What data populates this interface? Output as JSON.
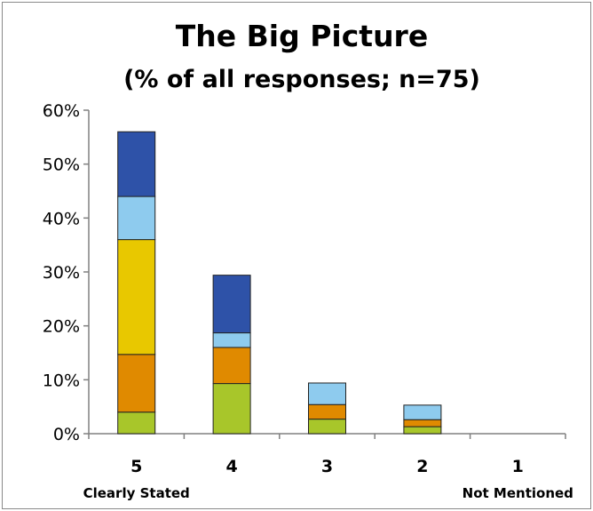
{
  "chart_data": {
    "type": "bar",
    "stacked": true,
    "title": "The Big Picture",
    "subtitle": "(% of all responses; n=75)",
    "categories": [
      "5",
      "4",
      "3",
      "2",
      "1"
    ],
    "category_notes": [
      "Clearly Stated",
      "",
      "",
      "",
      "Not Mentioned"
    ],
    "ylim": [
      0,
      60
    ],
    "yticks": [
      0,
      10,
      20,
      30,
      40,
      50,
      60
    ],
    "ytick_suffix": "%",
    "grid": false,
    "legend": "none",
    "series": [
      {
        "color": "#a8c62a",
        "values": [
          4.0,
          9.3,
          2.7,
          1.3,
          0
        ]
      },
      {
        "color": "#e08a00",
        "values": [
          10.7,
          6.7,
          2.7,
          1.3,
          0
        ]
      },
      {
        "color": "#e8c800",
        "values": [
          21.3,
          0,
          0,
          0,
          0
        ]
      },
      {
        "color": "#8ecbee",
        "values": [
          8.0,
          2.7,
          4.0,
          2.7,
          0
        ]
      },
      {
        "color": "#2e52a8",
        "values": [
          12.0,
          10.7,
          0,
          0,
          0
        ]
      }
    ]
  }
}
